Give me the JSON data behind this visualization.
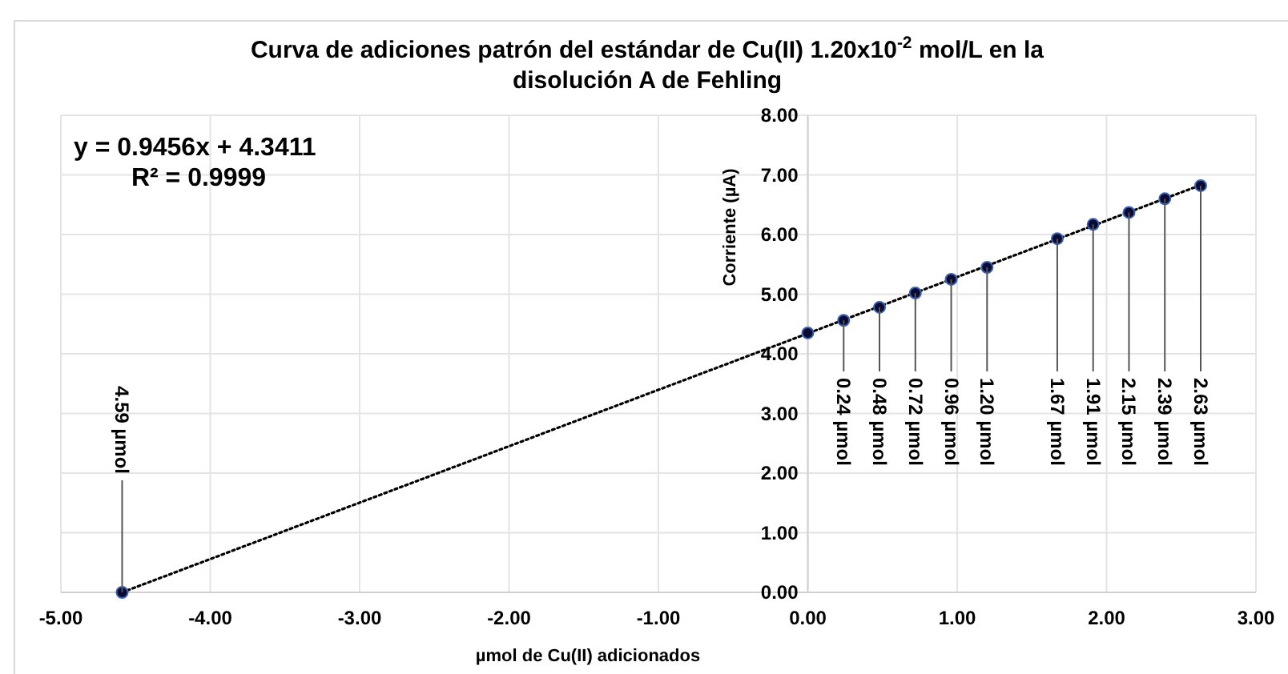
{
  "chart_data": {
    "type": "scatter",
    "title": "Curva de adiciones patrón del estándar de Cu(II) 1.20x10$^{-2}$ mol/L en la disolución A de Fehling",
    "xlabel": "µmol de Cu(II) adicionados",
    "ylabel": "Corriente (µA)",
    "series": [
      {
        "color": "#0a0a33",
        "marker": "circle",
        "x": [
          -4.59,
          0,
          0.24,
          0.48,
          0.72,
          0.96,
          1.2,
          1.67,
          1.91,
          2.15,
          2.39,
          2.63
        ],
        "values": [
          0,
          4.35,
          4.56,
          4.78,
          5.02,
          5.25,
          5.45,
          5.93,
          6.17,
          6.37,
          6.6,
          6.82
        ]
      },
      {
        "type": "line",
        "color": "#000000",
        "line_style": "dotted",
        "x": [
          -4.59,
          2.63
        ],
        "values": [
          0,
          6.83
        ]
      }
    ],
    "xlim": [
      -5,
      3
    ],
    "ylim": [
      0,
      8
    ],
    "xticks": [
      {
        "value": -5,
        "label": "-5.00"
      },
      {
        "value": -4,
        "label": "-4.00"
      },
      {
        "value": -3,
        "label": "-3.00"
      },
      {
        "value": -2,
        "label": "-2.00"
      },
      {
        "value": -1,
        "label": "-1.00"
      },
      {
        "value": 0,
        "label": "0.00"
      },
      {
        "value": 1,
        "label": "1.00"
      },
      {
        "value": 2,
        "label": "2.00"
      },
      {
        "value": 3,
        "label": "3.00"
      }
    ],
    "yticks": [
      {
        "value": 0,
        "label": "0.00"
      },
      {
        "value": 1,
        "label": "1.00"
      },
      {
        "value": 2,
        "label": "2.00"
      },
      {
        "value": 3,
        "label": "3.00"
      },
      {
        "value": 4,
        "label": "4.00"
      },
      {
        "value": 5,
        "label": "5.00"
      },
      {
        "value": 6,
        "label": "6.00"
      },
      {
        "value": 7,
        "label": "7.00"
      },
      {
        "value": 8,
        "label": "8.00"
      }
    ],
    "grid": true,
    "annotations": [
      "y = 0.9456x + 4.3411",
      "R² = 0.9999",
      {
        "text": "4.59 µmol",
        "x": -4.59,
        "y": 0
      },
      {
        "text": "0.24 µmol",
        "x": 0.24,
        "y": 4.56
      },
      {
        "text": "0.48 µmol",
        "x": 0.48,
        "y": 4.78
      },
      {
        "text": "0.72 µmol",
        "x": 0.72,
        "y": 5.02
      },
      {
        "text": "0.96 µmol",
        "x": 0.96,
        "y": 5.25
      },
      {
        "text": "1.20 µmol",
        "x": 1.2,
        "y": 5.45
      },
      {
        "text": "1.67 µmol",
        "x": 1.67,
        "y": 5.93
      },
      {
        "text": "1.91 µmol",
        "x": 1.91,
        "y": 6.17
      },
      {
        "text": "2.15 µmol",
        "x": 2.15,
        "y": 6.37
      },
      {
        "text": "2.39 µmol",
        "x": 2.39,
        "y": 6.6
      },
      {
        "text": "2.63 µmol",
        "x": 2.63,
        "y": 6.82
      }
    ]
  }
}
